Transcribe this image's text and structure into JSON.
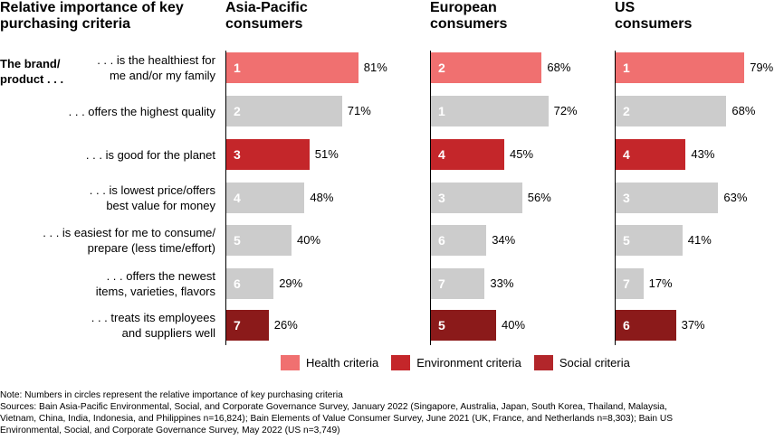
{
  "chart_data": {
    "type": "bar",
    "orientation": "horizontal",
    "title": "Relative importance of key purchasing criteria",
    "row_prefix": "The brand/\nproduct . . .",
    "categories": [
      ". . . is the healthiest for\nme and/or my family",
      ". . . offers the highest quality",
      ". . . is good for the planet",
      ". . . is lowest price/offers\nbest value for money",
      ". . . is easiest for me to consume/\nprepare (less time/effort)",
      ". . . offers the newest\nitems, varieties, flavors",
      ". . . treats its employees\nand suppliers well"
    ],
    "criteria_types": [
      "health",
      "none",
      "environment",
      "none",
      "none",
      "none",
      "social"
    ],
    "xlim": [
      0,
      100
    ],
    "series": [
      {
        "name": "Asia-Pacific\nconsumers",
        "values": [
          81,
          71,
          51,
          48,
          40,
          29,
          26
        ],
        "ranks": [
          "1",
          "2",
          "3",
          "4",
          "5",
          "6",
          "7"
        ]
      },
      {
        "name": "European\nconsumers",
        "values": [
          68,
          72,
          45,
          56,
          34,
          33,
          40
        ],
        "ranks": [
          "2",
          "1",
          "4",
          "3",
          "6",
          "7",
          "5"
        ]
      },
      {
        "name": "US\nconsumers",
        "values": [
          79,
          68,
          43,
          63,
          41,
          17,
          37
        ],
        "ranks": [
          "1",
          "2",
          "4",
          "3",
          "5",
          "7",
          "6"
        ]
      }
    ],
    "value_suffix": "%",
    "colors": {
      "health": "#F07070",
      "environment": "#C4262A",
      "social": "#8B1A1A",
      "none": "#CCCCCC"
    },
    "legend": [
      {
        "label": "Health criteria",
        "type": "health"
      },
      {
        "label": "Environment  criteria",
        "type": "environment"
      },
      {
        "label": "Social criteria",
        "type": "social",
        "swatch_color": "#B2262A"
      }
    ],
    "legend_position": "bottom"
  },
  "notes": [
    "Note: Numbers in circles represent the relative importance of key purchasing criteria",
    "Sources: Bain Asia-Pacific Environmental, Social, and Corporate Governance Survey, January 2022 (Singapore, Australia, Japan, South Korea, Thailand, Malaysia,",
    "Vietnam, China, India, Indonesia, and Philippines n=16,824); Bain Elements of Value Consumer Survey, June 2021 (UK, France, and Netherlands n=8,303); Bain US",
    "Environmental, Social, and Corporate Governance Survey, May 2022 (US n=3,749)"
  ]
}
